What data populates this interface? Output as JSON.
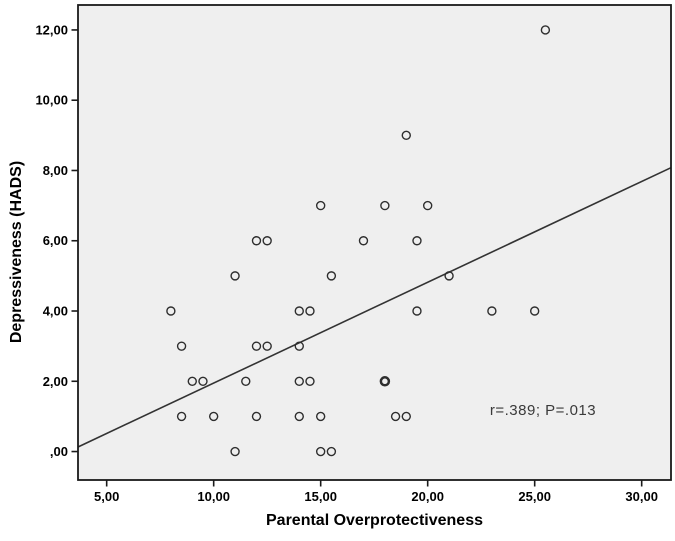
{
  "chart_data": {
    "type": "scatter",
    "title": "",
    "xlabel": "Parental Overprotectiveness",
    "ylabel": "Depressiveness (HADS)",
    "xlim": [
      3.66,
      31.37
    ],
    "ylim": [
      -0.81,
      12.71
    ],
    "grid": false,
    "legend": "none",
    "plot_bg_color": "#efefef",
    "frame_color": "#1a1a1a",
    "marker_color": "#2e2e2e",
    "line_color": "#333333",
    "x_ticks": [
      {
        "value": 5,
        "label": "5,00"
      },
      {
        "value": 10,
        "label": "10,00"
      },
      {
        "value": 15,
        "label": "15,00"
      },
      {
        "value": 20,
        "label": "20,00"
      },
      {
        "value": 25,
        "label": "25,00"
      },
      {
        "value": 30,
        "label": "30,00"
      }
    ],
    "y_ticks": [
      {
        "value": 0,
        "label": ",00"
      },
      {
        "value": 2,
        "label": "2,00"
      },
      {
        "value": 4,
        "label": "4,00"
      },
      {
        "value": 6,
        "label": "6,00"
      },
      {
        "value": 8,
        "label": "8,00"
      },
      {
        "value": 10,
        "label": "10,00"
      },
      {
        "value": 12,
        "label": "12,00"
      }
    ],
    "points": [
      {
        "x": 25.5,
        "y": 12
      },
      {
        "x": 19,
        "y": 9
      },
      {
        "x": 15,
        "y": 7
      },
      {
        "x": 18,
        "y": 7
      },
      {
        "x": 20,
        "y": 7
      },
      {
        "x": 12,
        "y": 6
      },
      {
        "x": 12.5,
        "y": 6
      },
      {
        "x": 17,
        "y": 6
      },
      {
        "x": 19.5,
        "y": 6
      },
      {
        "x": 11,
        "y": 5
      },
      {
        "x": 15.5,
        "y": 5
      },
      {
        "x": 21,
        "y": 5
      },
      {
        "x": 8,
        "y": 4
      },
      {
        "x": 14,
        "y": 4
      },
      {
        "x": 14.5,
        "y": 4
      },
      {
        "x": 19.5,
        "y": 4
      },
      {
        "x": 23,
        "y": 4
      },
      {
        "x": 25,
        "y": 4
      },
      {
        "x": 8.5,
        "y": 3
      },
      {
        "x": 12,
        "y": 3
      },
      {
        "x": 12.5,
        "y": 3
      },
      {
        "x": 14,
        "y": 3
      },
      {
        "x": 9,
        "y": 2
      },
      {
        "x": 9.5,
        "y": 2
      },
      {
        "x": 11.5,
        "y": 2
      },
      {
        "x": 14,
        "y": 2
      },
      {
        "x": 14.5,
        "y": 2
      },
      {
        "x": 18,
        "y": 2,
        "overplot": true
      },
      {
        "x": 8.5,
        "y": 1
      },
      {
        "x": 10,
        "y": 1
      },
      {
        "x": 12,
        "y": 1
      },
      {
        "x": 14,
        "y": 1
      },
      {
        "x": 15,
        "y": 1
      },
      {
        "x": 18.5,
        "y": 1
      },
      {
        "x": 19,
        "y": 1
      },
      {
        "x": 11,
        "y": 0
      },
      {
        "x": 15,
        "y": 0
      },
      {
        "x": 15.5,
        "y": 0
      }
    ],
    "fit_line": {
      "x1": 3.66,
      "y1": 0.13,
      "x2": 31.37,
      "y2": 8.08
    },
    "annotation": {
      "text": "r=.389; P=.013"
    }
  }
}
